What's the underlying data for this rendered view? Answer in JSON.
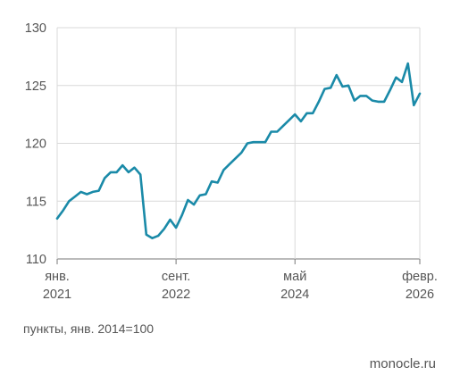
{
  "chart_data": {
    "type": "line",
    "xlabel": "",
    "ylabel": "",
    "y_ticks": [
      110,
      115,
      120,
      125,
      130
    ],
    "ylim": [
      110,
      130
    ],
    "grid": true,
    "x_ticks": [
      {
        "month": "янв.",
        "year": "2021",
        "index": 0
      },
      {
        "month": "сент.",
        "year": "2022",
        "index": 20
      },
      {
        "month": "май",
        "year": "2024",
        "index": 40
      },
      {
        "month": "февр.",
        "year": "2026",
        "index": 61
      }
    ],
    "x_range": [
      0,
      61
    ],
    "series": [
      {
        "color": "#1a8aa8",
        "values": [
          113.5,
          114.2,
          115.0,
          115.4,
          115.8,
          115.6,
          115.8,
          115.9,
          117.0,
          117.5,
          117.5,
          118.1,
          117.5,
          117.9,
          117.3,
          112.1,
          111.8,
          112.0,
          112.6,
          113.4,
          112.7,
          113.8,
          115.1,
          114.7,
          115.5,
          115.6,
          116.7,
          116.6,
          117.7,
          118.2,
          118.7,
          119.2,
          120.0,
          120.1,
          120.1,
          120.1,
          121.0,
          121.0,
          121.5,
          122.0,
          122.5,
          121.9,
          122.6,
          122.6,
          123.6,
          124.7,
          124.8,
          125.9,
          124.9,
          125.0,
          123.7,
          124.1,
          124.1,
          123.7,
          123.6,
          123.6,
          124.6,
          125.7,
          125.3,
          126.9,
          123.3,
          124.3
        ]
      }
    ]
  },
  "footnote": "пункты, янв. 2014=100",
  "source": "monocle.ru"
}
